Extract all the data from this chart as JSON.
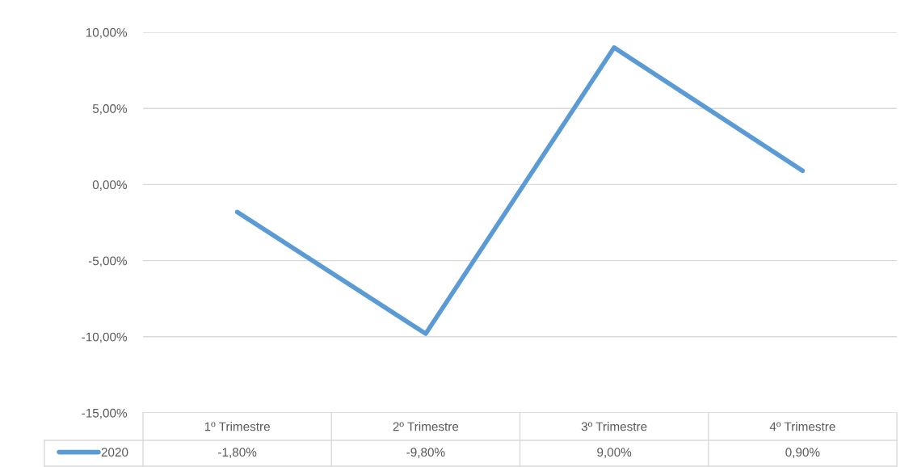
{
  "chart_data": {
    "type": "line",
    "categories": [
      "1º Trimestre",
      "2º Trimestre",
      "3º Trimestre",
      "4º Trimestre"
    ],
    "series": [
      {
        "name": "2020",
        "color": "#5b9bd5",
        "values": [
          -1.8,
          -9.8,
          9.0,
          0.9
        ],
        "value_labels": [
          "-1,80%",
          "-9,80%",
          "9,00%",
          "0,90%"
        ]
      }
    ],
    "ylim": [
      -15,
      10
    ],
    "yticks": [
      {
        "value": -15,
        "label": "-15,00%"
      },
      {
        "value": -10,
        "label": "-10,00%"
      },
      {
        "value": -5,
        "label": "-5,00%"
      },
      {
        "value": 0,
        "label": "0,00%"
      },
      {
        "value": 5,
        "label": "5,00%"
      },
      {
        "value": 10,
        "label": "10,00%"
      }
    ],
    "grid": "y",
    "legend": "bottom",
    "marker": "none",
    "line_style": "solid"
  }
}
